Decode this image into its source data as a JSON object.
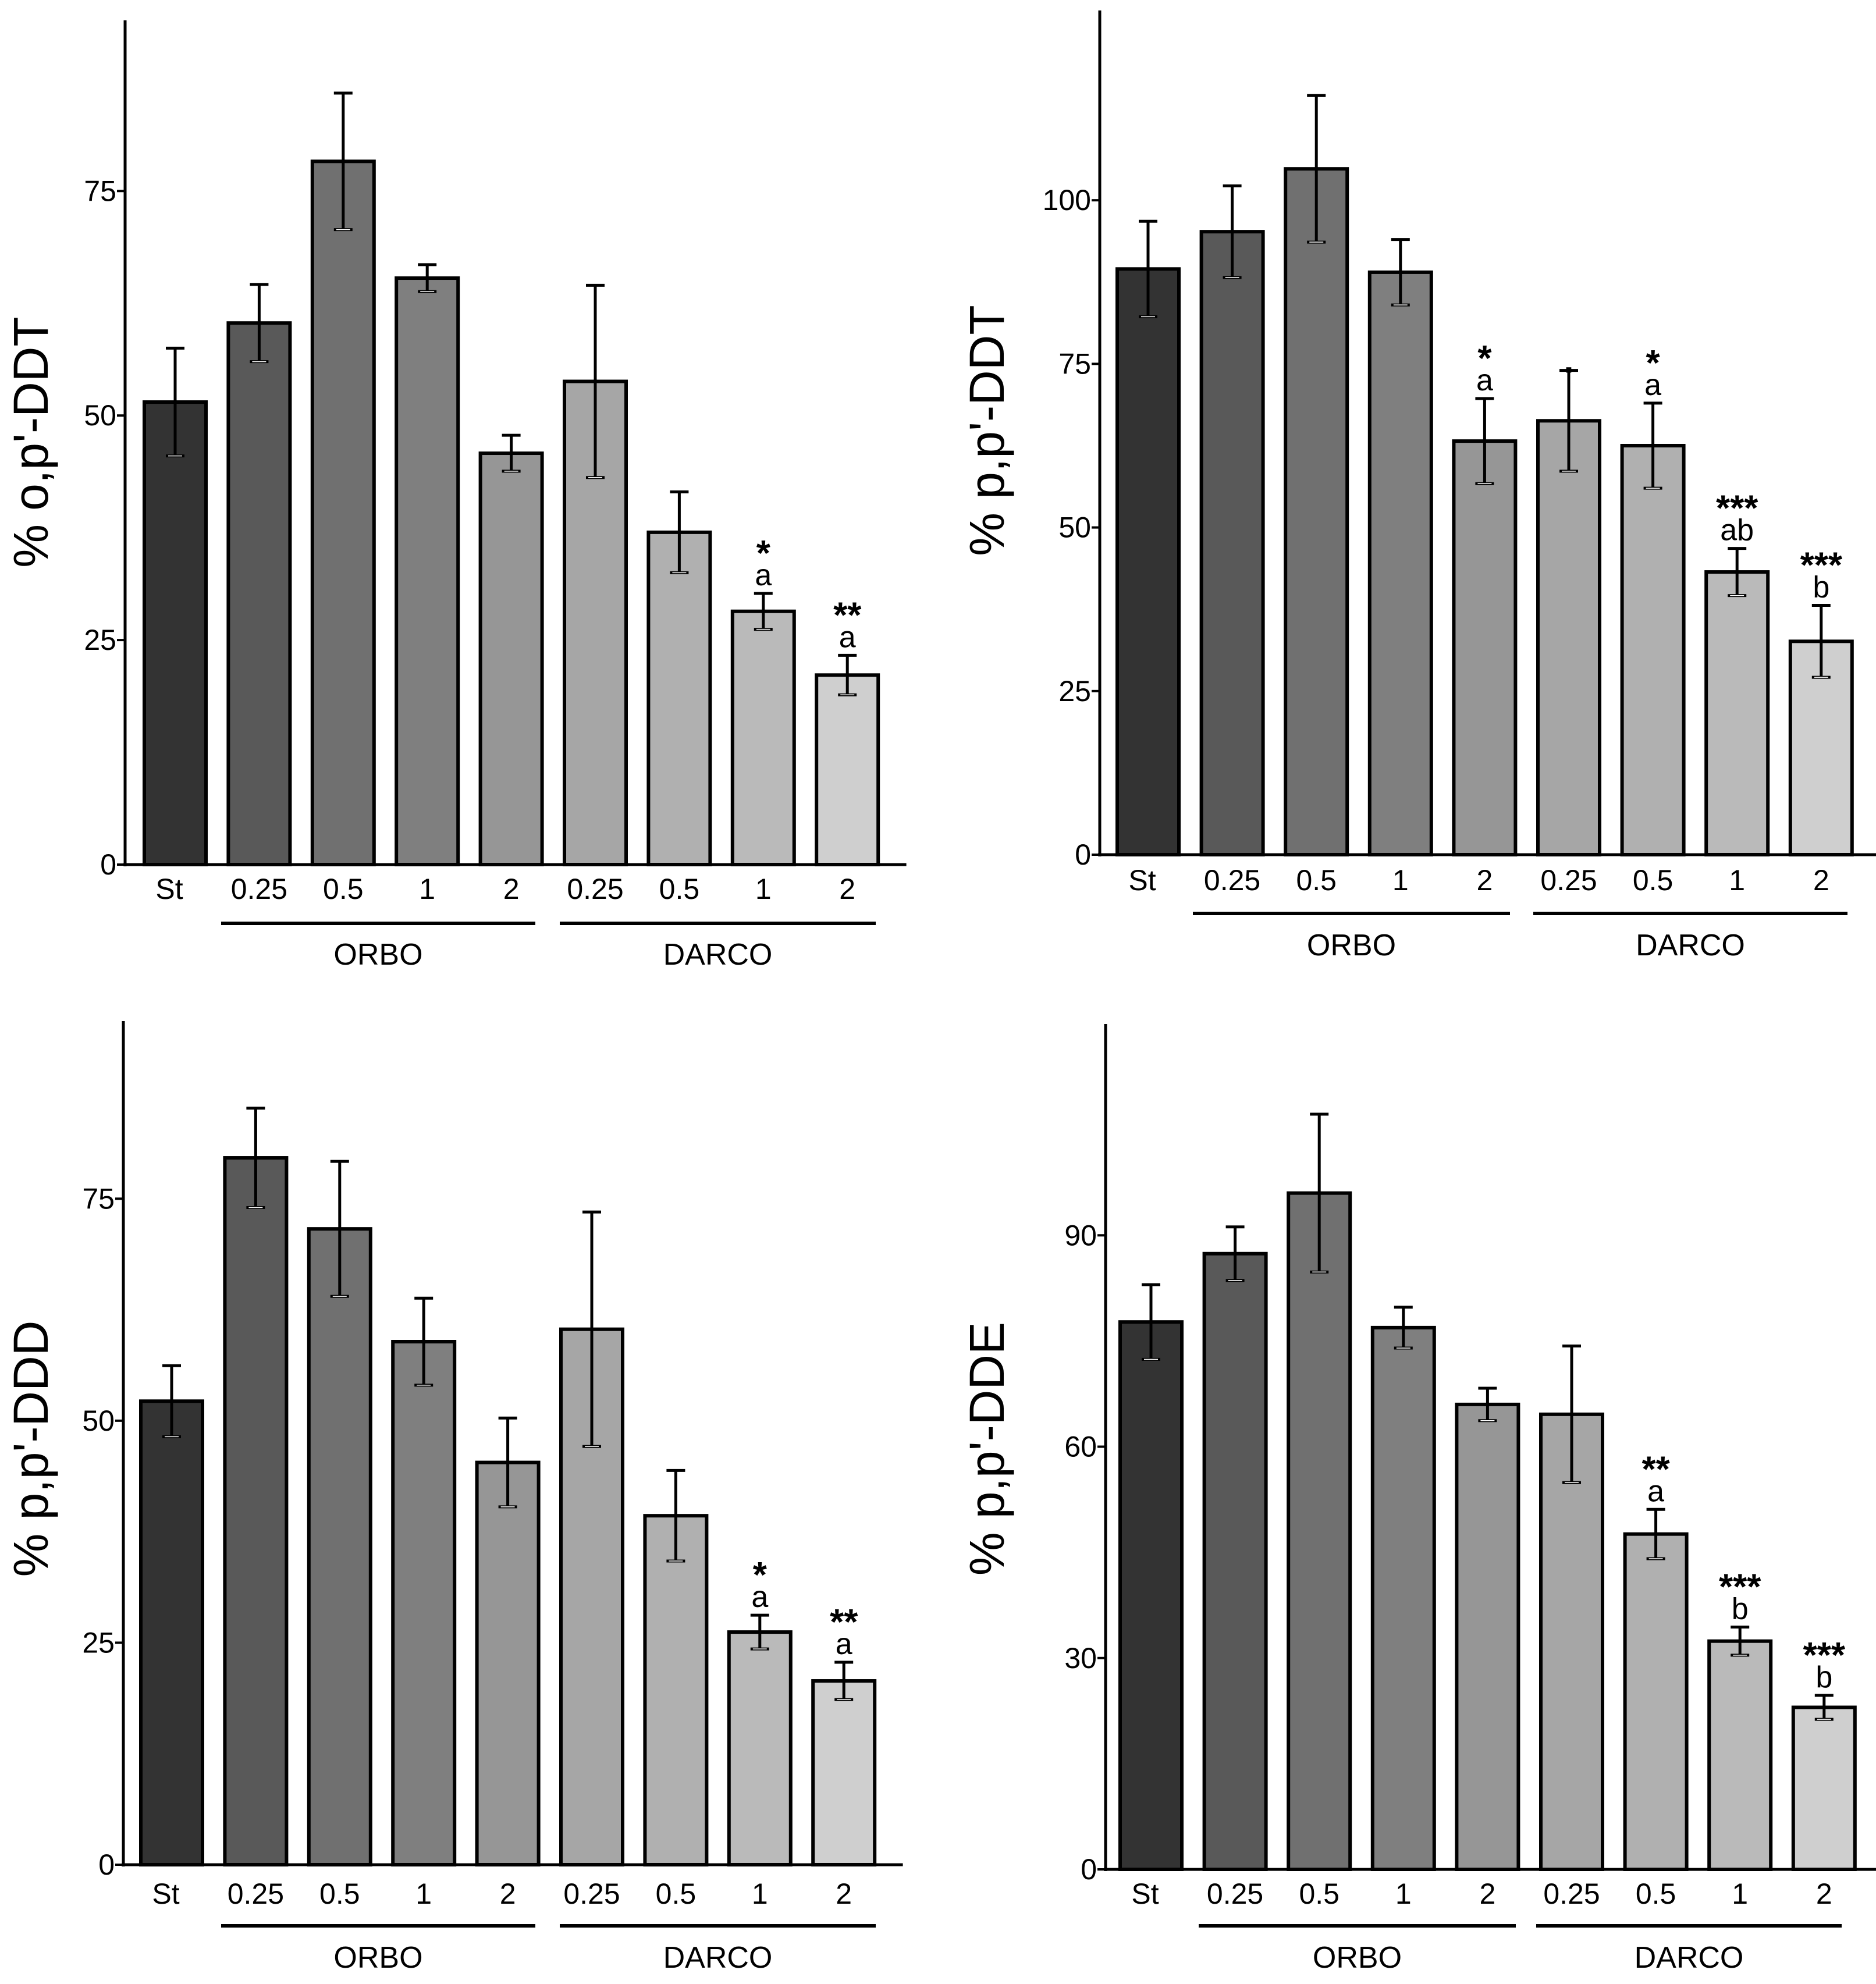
{
  "chart_data": [
    {
      "type": "bar",
      "ylabel": "% o,p'-DDT",
      "yticks": [
        0,
        25,
        50,
        75
      ],
      "ylim": [
        0,
        94
      ],
      "categories": [
        "St",
        "0.25",
        "0.5",
        "1",
        "2",
        "0.25",
        "0.5",
        "1",
        "2"
      ],
      "groups": [
        {
          "label": "ORBO",
          "from": 1,
          "to": 4
        },
        {
          "label": "DARCO",
          "from": 5,
          "to": 8
        }
      ],
      "values": [
        51.5,
        60.3,
        78.3,
        65.3,
        45.8,
        53.8,
        37.0,
        28.2,
        21.1
      ],
      "errors": [
        6.0,
        4.3,
        7.6,
        1.5,
        2.0,
        10.7,
        4.5,
        2.0,
        2.2
      ],
      "fills": [
        "#333333",
        "#595959",
        "#707070",
        "#7f7f7f",
        "#969696",
        "#a6a6a6",
        "#b0b0b0",
        "#bababa",
        "#cfcfcf"
      ],
      "stars": [
        "",
        "",
        "",
        "",
        "",
        "",
        "",
        "*",
        "**"
      ],
      "letters": [
        "",
        "",
        "",
        "",
        "",
        "",
        "",
        "a",
        "a"
      ]
    },
    {
      "type": "bar",
      "ylabel": "% p,p'-DDT",
      "yticks": [
        0,
        25,
        50,
        75,
        100
      ],
      "ylim": [
        0,
        129
      ],
      "categories": [
        "St",
        "0.25",
        "0.5",
        "1",
        "2",
        "0.25",
        "0.5",
        "1",
        "2"
      ],
      "groups": [
        {
          "label": "ORBO",
          "from": 1,
          "to": 4
        },
        {
          "label": "DARCO",
          "from": 5,
          "to": 8
        }
      ],
      "values": [
        89.5,
        95.2,
        104.8,
        89.0,
        63.2,
        66.3,
        62.5,
        43.2,
        32.6
      ],
      "errors": [
        7.3,
        7.0,
        11.2,
        5.0,
        6.5,
        7.7,
        6.5,
        3.6,
        5.5
      ],
      "fills": [
        "#333333",
        "#595959",
        "#707070",
        "#7f7f7f",
        "#969696",
        "#a6a6a6",
        "#b0b0b0",
        "#bababa",
        "#cfcfcf"
      ],
      "stars": [
        "",
        "",
        "",
        "",
        "*",
        ".",
        "*",
        "***",
        "***"
      ],
      "letters": [
        "",
        "",
        "",
        "",
        "a",
        "",
        "a",
        "ab",
        "b"
      ]
    },
    {
      "type": "bar",
      "ylabel": "% p,p'-DDD",
      "yticks": [
        0,
        25,
        50,
        75
      ],
      "ylim": [
        0,
        95
      ],
      "categories": [
        "St",
        "0.25",
        "0.5",
        "1",
        "2",
        "0.25",
        "0.5",
        "1",
        "2"
      ],
      "groups": [
        {
          "label": "ORBO",
          "from": 1,
          "to": 4
        },
        {
          "label": "DARCO",
          "from": 5,
          "to": 8
        }
      ],
      "values": [
        52.2,
        79.6,
        71.6,
        58.9,
        45.3,
        60.3,
        39.3,
        26.2,
        20.7
      ],
      "errors": [
        4.0,
        5.6,
        7.6,
        4.9,
        5.0,
        13.2,
        5.1,
        1.9,
        2.1
      ],
      "fills": [
        "#333333",
        "#595959",
        "#707070",
        "#7f7f7f",
        "#969696",
        "#a6a6a6",
        "#b0b0b0",
        "#bababa",
        "#cfcfcf"
      ],
      "stars": [
        "",
        "",
        "",
        "",
        "",
        "",
        "",
        "*",
        "**"
      ],
      "letters": [
        "",
        "",
        "",
        "",
        "",
        "",
        "",
        "a",
        "a"
      ]
    },
    {
      "type": "bar",
      "ylabel": "% p,p'-DDE",
      "yticks": [
        0,
        30,
        60,
        90
      ],
      "ylim": [
        0,
        120
      ],
      "categories": [
        "St",
        "0.25",
        "0.5",
        "1",
        "2",
        "0.25",
        "0.5",
        "1",
        "2"
      ],
      "groups": [
        {
          "label": "ORBO",
          "from": 1,
          "to": 4
        },
        {
          "label": "DARCO",
          "from": 5,
          "to": 8
        }
      ],
      "values": [
        77.7,
        87.4,
        96.0,
        76.9,
        66.0,
        64.6,
        47.6,
        32.4,
        23.0
      ],
      "errors": [
        5.3,
        3.8,
        11.2,
        2.9,
        2.3,
        9.7,
        3.5,
        2.0,
        1.7
      ],
      "fills": [
        "#333333",
        "#595959",
        "#707070",
        "#7f7f7f",
        "#969696",
        "#a6a6a6",
        "#b0b0b0",
        "#bababa",
        "#cfcfcf"
      ],
      "stars": [
        "",
        "",
        "",
        "",
        "",
        "",
        "**",
        "***",
        "***"
      ],
      "letters": [
        "",
        "",
        "",
        "",
        "",
        "",
        "a",
        "b",
        "b"
      ]
    }
  ]
}
